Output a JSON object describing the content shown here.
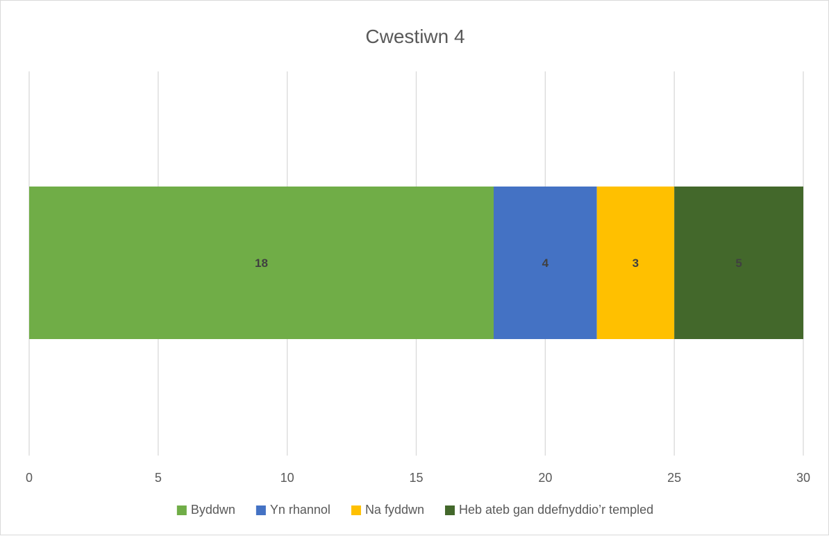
{
  "chart_data": {
    "type": "bar",
    "orientation": "horizontal",
    "stacked": true,
    "title": "Cwestiwn 4",
    "categories": [
      ""
    ],
    "series": [
      {
        "name": "Byddwn",
        "values": [
          18
        ],
        "color": "#70ad47"
      },
      {
        "name": "Yn rhannol",
        "values": [
          4
        ],
        "color": "#4472c4"
      },
      {
        "name": "Na fyddwn",
        "values": [
          3
        ],
        "color": "#ffc000"
      },
      {
        "name": "Heb ateb gan ddefnyddio’r templed",
        "values": [
          5
        ],
        "color": "#43682b"
      }
    ],
    "xlim": [
      0,
      30
    ],
    "x_ticks": [
      "0",
      "5",
      "10",
      "15",
      "20",
      "25",
      "30"
    ],
    "data_labels": true,
    "grid": "vertical",
    "legend_position": "bottom"
  }
}
